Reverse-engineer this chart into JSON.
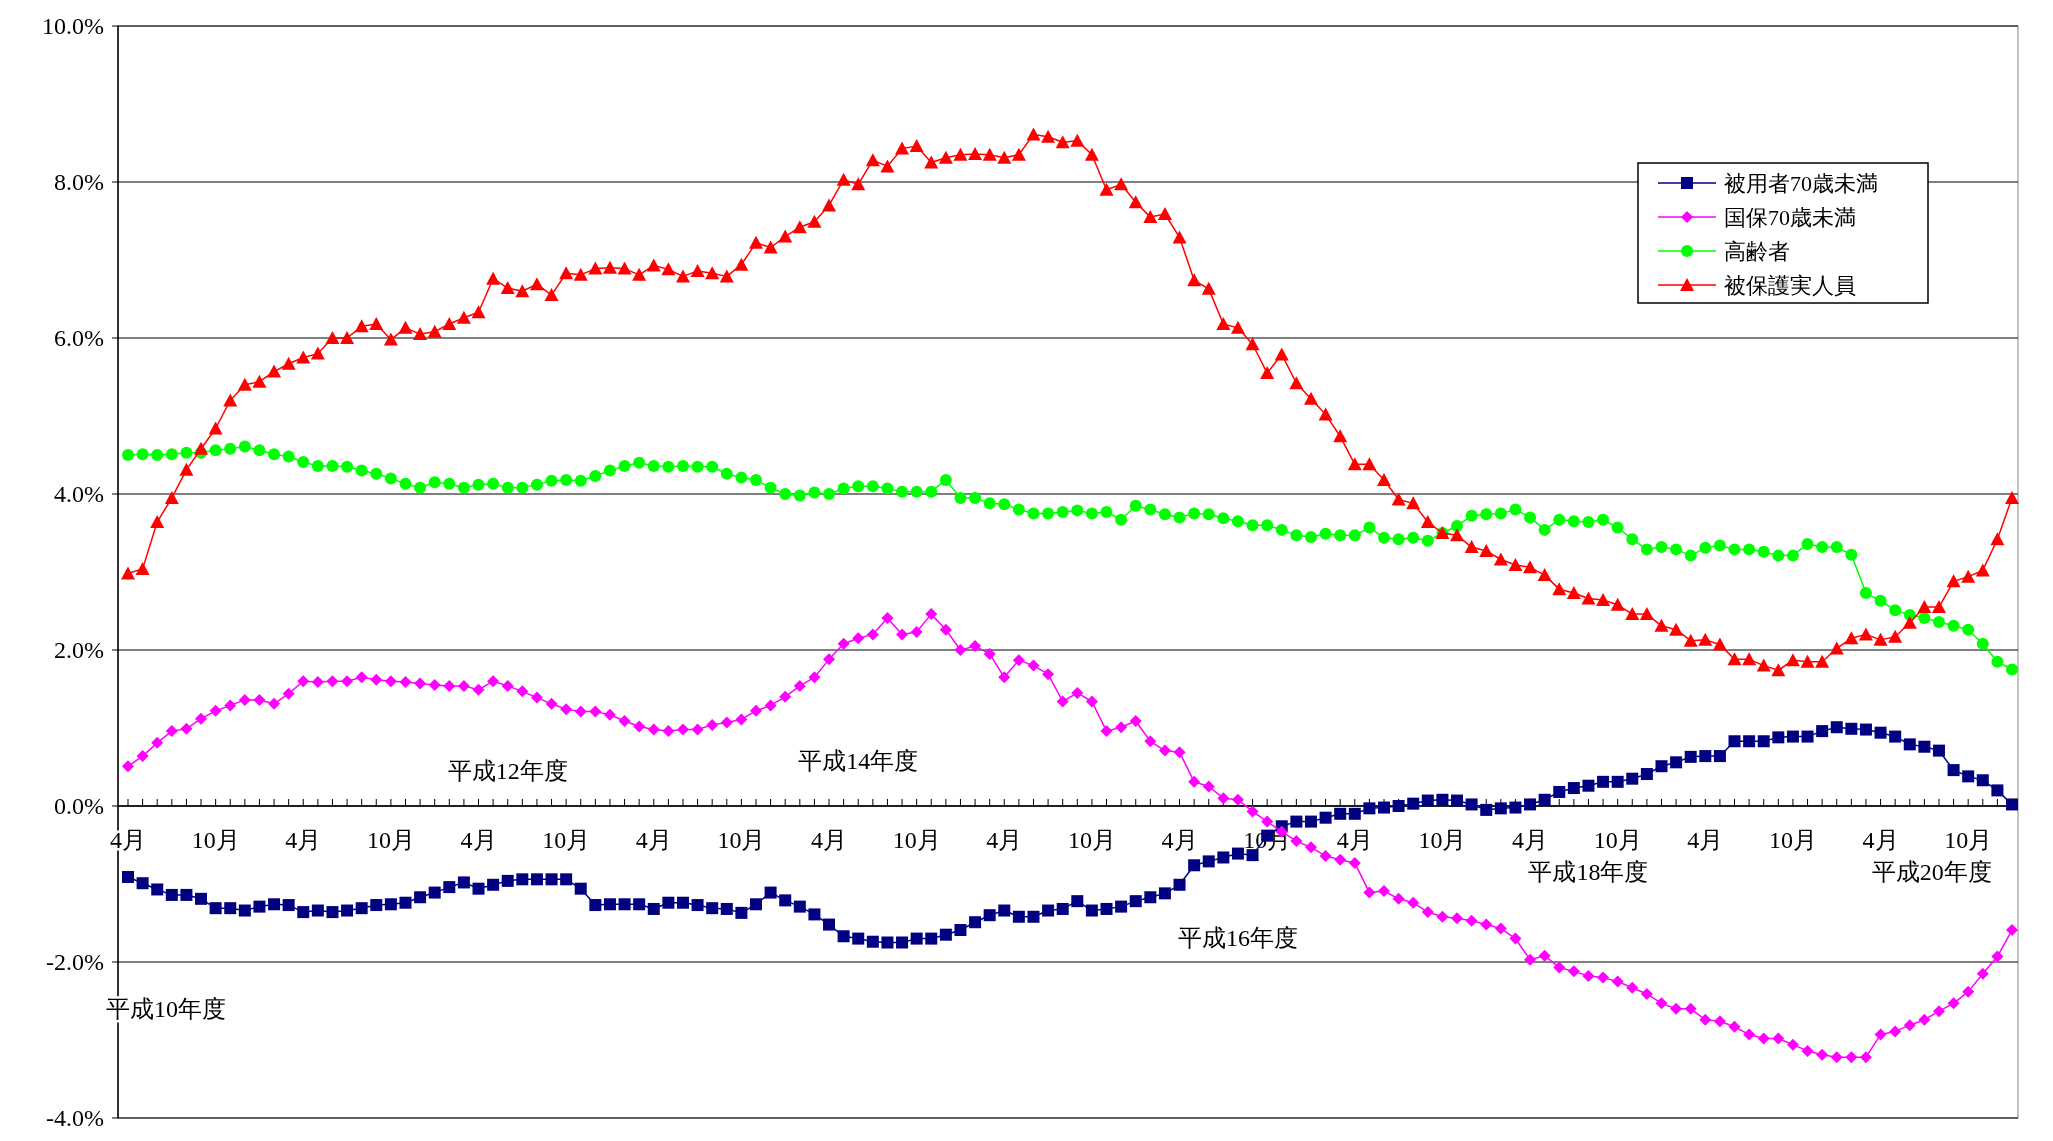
{
  "chart_data": {
    "type": "line",
    "categories": [
      "4月",
      null,
      null,
      null,
      null,
      null,
      "10月",
      null,
      null,
      null,
      null,
      null,
      "4月",
      null,
      null,
      null,
      null,
      null,
      "10月",
      null,
      null,
      null,
      null,
      null,
      "4月",
      null,
      null,
      null,
      null,
      null,
      "10月",
      null,
      null,
      null,
      null,
      null,
      "4月",
      null,
      null,
      null,
      null,
      null,
      "10月",
      null,
      null,
      null,
      null,
      null,
      "4月",
      null,
      null,
      null,
      null,
      null,
      "10月",
      null,
      null,
      null,
      null,
      null,
      "4月",
      null,
      null,
      null,
      null,
      null,
      "10月",
      null,
      null,
      null,
      null,
      null,
      "4月",
      null,
      null,
      null,
      null,
      null,
      "10月",
      null,
      null,
      null,
      null,
      null,
      "4月",
      null,
      null,
      null,
      null,
      null,
      "10月",
      null,
      null,
      null,
      null,
      null,
      "4月",
      null,
      null,
      null,
      null,
      null,
      "10月",
      null,
      null,
      null,
      null,
      null,
      "4月",
      null,
      null,
      null,
      null,
      null,
      "10月",
      null,
      null,
      null,
      null,
      null,
      "4月",
      null,
      null,
      null,
      null,
      null,
      "10月",
      null,
      null,
      null
    ],
    "series": [
      {
        "name": "被用者70歳未満",
        "color": "#000080",
        "marker": "square",
        "values": [
          -0.91,
          -0.99,
          -1.07,
          -1.14,
          -1.14,
          -1.19,
          -1.31,
          -1.31,
          -1.34,
          -1.29,
          -1.26,
          -1.27,
          -1.36,
          -1.34,
          -1.36,
          -1.34,
          -1.31,
          -1.27,
          -1.26,
          -1.24,
          -1.17,
          -1.11,
          -1.04,
          -0.98,
          -1.06,
          -1.01,
          -0.96,
          -0.94,
          -0.94,
          -0.94,
          -0.94,
          -1.06,
          -1.27,
          -1.26,
          -1.26,
          -1.26,
          -1.32,
          -1.24,
          -1.24,
          -1.27,
          -1.31,
          -1.32,
          -1.37,
          -1.26,
          -1.11,
          -1.21,
          -1.29,
          -1.39,
          -1.52,
          -1.67,
          -1.7,
          -1.74,
          -1.75,
          -1.75,
          -1.7,
          -1.7,
          -1.65,
          -1.59,
          -1.49,
          -1.4,
          -1.34,
          -1.42,
          -1.42,
          -1.34,
          -1.32,
          -1.22,
          -1.34,
          -1.32,
          -1.29,
          -1.22,
          -1.17,
          -1.12,
          -1.01,
          -0.76,
          -0.71,
          -0.66,
          -0.61,
          -0.63,
          -0.38,
          -0.26,
          -0.2,
          -0.2,
          -0.15,
          -0.1,
          -0.1,
          -0.03,
          -0.02,
          0,
          0.03,
          0.07,
          0.08,
          0.07,
          0.02,
          -0.05,
          -0.03,
          -0.02,
          0.02,
          0.08,
          0.18,
          0.23,
          0.26,
          0.31,
          0.31,
          0.35,
          0.41,
          0.51,
          0.56,
          0.63,
          0.64,
          0.64,
          0.83,
          0.83,
          0.83,
          0.88,
          0.89,
          0.89,
          0.96,
          1.01,
          0.99,
          0.98,
          0.94,
          0.89,
          0.79,
          0.76,
          0.71,
          0.46,
          0.38,
          0.33,
          0.2,
          0.02
        ]
      },
      {
        "name": "国保70歳未満",
        "color": "#ff00ff",
        "marker": "diamond",
        "values": [
          0.51,
          0.64,
          0.81,
          0.96,
          0.99,
          1.12,
          1.22,
          1.29,
          1.36,
          1.36,
          1.31,
          1.44,
          1.6,
          1.59,
          1.6,
          1.6,
          1.65,
          1.62,
          1.6,
          1.59,
          1.57,
          1.55,
          1.54,
          1.54,
          1.49,
          1.6,
          1.54,
          1.47,
          1.39,
          1.31,
          1.24,
          1.21,
          1.21,
          1.17,
          1.09,
          1.02,
          0.98,
          0.96,
          0.98,
          0.98,
          1.04,
          1.07,
          1.11,
          1.22,
          1.29,
          1.4,
          1.54,
          1.65,
          1.88,
          2.08,
          2.15,
          2.2,
          2.41,
          2.2,
          2.23,
          2.46,
          2.26,
          2.0,
          2.05,
          1.95,
          1.65,
          1.87,
          1.8,
          1.69,
          1.34,
          1.45,
          1.34,
          0.96,
          1.01,
          1.09,
          0.83,
          0.71,
          0.69,
          0.31,
          0.25,
          0.1,
          0.08,
          -0.07,
          -0.2,
          -0.33,
          -0.45,
          -0.53,
          -0.64,
          -0.69,
          -0.73,
          -1.11,
          -1.09,
          -1.19,
          -1.24,
          -1.36,
          -1.42,
          -1.44,
          -1.47,
          -1.52,
          -1.57,
          -1.7,
          -1.97,
          -1.92,
          -2.07,
          -2.12,
          -2.18,
          -2.2,
          -2.25,
          -2.33,
          -2.41,
          -2.53,
          -2.6,
          -2.6,
          -2.74,
          -2.76,
          -2.83,
          -2.93,
          -2.98,
          -2.98,
          -3.06,
          -3.14,
          -3.19,
          -3.22,
          -3.22,
          -3.22,
          -2.93,
          -2.89,
          -2.81,
          -2.74,
          -2.63,
          -2.53,
          -2.38,
          -2.15,
          -1.93,
          -1.59
        ]
      },
      {
        "name": "高齢者",
        "color": "#00ff00",
        "marker": "circle",
        "values": [
          4.5,
          4.51,
          4.5,
          4.51,
          4.53,
          4.53,
          4.56,
          4.58,
          4.61,
          4.56,
          4.51,
          4.48,
          4.41,
          4.36,
          4.36,
          4.35,
          4.3,
          4.26,
          4.2,
          4.13,
          4.08,
          4.15,
          4.13,
          4.08,
          4.12,
          4.13,
          4.08,
          4.08,
          4.12,
          4.17,
          4.18,
          4.17,
          4.23,
          4.3,
          4.36,
          4.4,
          4.36,
          4.35,
          4.36,
          4.35,
          4.35,
          4.26,
          4.21,
          4.18,
          4.08,
          4.0,
          3.98,
          4.02,
          4.0,
          4.07,
          4.1,
          4.1,
          4.07,
          4.03,
          4.03,
          4.03,
          4.18,
          3.95,
          3.95,
          3.88,
          3.87,
          3.8,
          3.75,
          3.75,
          3.77,
          3.79,
          3.75,
          3.77,
          3.67,
          3.85,
          3.8,
          3.74,
          3.7,
          3.75,
          3.74,
          3.69,
          3.65,
          3.6,
          3.6,
          3.54,
          3.47,
          3.45,
          3.49,
          3.47,
          3.47,
          3.57,
          3.44,
          3.42,
          3.44,
          3.4,
          3.5,
          3.59,
          3.72,
          3.74,
          3.75,
          3.8,
          3.7,
          3.54,
          3.67,
          3.65,
          3.64,
          3.67,
          3.57,
          3.42,
          3.29,
          3.32,
          3.29,
          3.21,
          3.31,
          3.34,
          3.29,
          3.29,
          3.26,
          3.21,
          3.21,
          3.36,
          3.32,
          3.32,
          3.22,
          2.73,
          2.63,
          2.51,
          2.45,
          2.41,
          2.36,
          2.31,
          2.26,
          2.08,
          1.85,
          1.75
        ]
      },
      {
        "name": "被保護実人員",
        "color": "#ff0000",
        "marker": "triangle",
        "values": [
          2.98,
          3.04,
          3.64,
          3.95,
          4.31,
          4.58,
          4.84,
          5.2,
          5.4,
          5.44,
          5.57,
          5.67,
          5.75,
          5.8,
          6.0,
          6.0,
          6.15,
          6.18,
          5.98,
          6.13,
          6.05,
          6.08,
          6.18,
          6.26,
          6.33,
          6.76,
          6.64,
          6.6,
          6.69,
          6.55,
          6.83,
          6.81,
          6.89,
          6.9,
          6.89,
          6.81,
          6.93,
          6.88,
          6.79,
          6.86,
          6.83,
          6.79,
          6.94,
          7.22,
          7.16,
          7.3,
          7.42,
          7.49,
          7.7,
          8.03,
          7.97,
          8.28,
          8.2,
          8.43,
          8.46,
          8.25,
          8.31,
          8.35,
          8.36,
          8.35,
          8.31,
          8.35,
          8.61,
          8.58,
          8.51,
          8.53,
          8.35,
          7.9,
          7.97,
          7.74,
          7.55,
          7.59,
          7.29,
          6.74,
          6.63,
          6.18,
          6.13,
          5.92,
          5.55,
          5.79,
          5.42,
          5.22,
          5.02,
          4.74,
          4.38,
          4.38,
          4.18,
          3.93,
          3.88,
          3.64,
          3.5,
          3.47,
          3.32,
          3.27,
          3.16,
          3.09,
          3.06,
          2.96,
          2.78,
          2.73,
          2.66,
          2.64,
          2.58,
          2.46,
          2.46,
          2.31,
          2.26,
          2.12,
          2.13,
          2.07,
          1.88,
          1.88,
          1.8,
          1.74,
          1.87,
          1.85,
          1.85,
          2.02,
          2.15,
          2.2,
          2.13,
          2.17,
          2.35,
          2.55,
          2.55,
          2.88,
          2.94,
          3.02,
          3.42,
          3.95
        ]
      }
    ],
    "ylim": [
      -4,
      10
    ],
    "yticks": [
      {
        "value": -4,
        "label": "-4.0%"
      },
      {
        "value": -2,
        "label": "-2.0%"
      },
      {
        "value": 0,
        "label": "0.0%"
      },
      {
        "value": 2,
        "label": "2.0%"
      },
      {
        "value": 4,
        "label": "4.0%"
      },
      {
        "value": 6,
        "label": "6.0%"
      },
      {
        "value": 8,
        "label": "8.0%"
      },
      {
        "value": 10,
        "label": "10.0%"
      }
    ],
    "grid": "y",
    "legend": "top right",
    "line_style": "solid",
    "annotations": [
      "平成10年度",
      "平成12年度",
      "平成14年度",
      "平成16年度",
      "平成18年度",
      "平成20年度"
    ]
  }
}
